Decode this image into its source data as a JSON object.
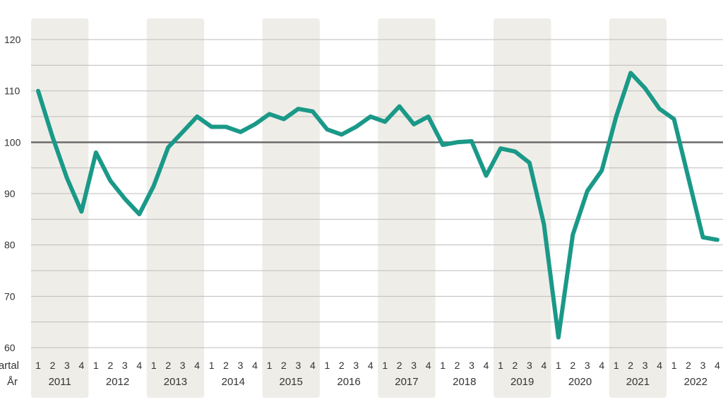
{
  "chart_data": {
    "type": "line",
    "title": "",
    "xlabel": "",
    "ylabel": "",
    "row_labels": {
      "quarter": "Kvartal",
      "year": "År"
    },
    "years": [
      "2011",
      "2012",
      "2013",
      "2014",
      "2015",
      "2016",
      "2017",
      "2018",
      "2019",
      "2020",
      "2021",
      "2022"
    ],
    "quarter_labels": [
      "1",
      "2",
      "3",
      "4"
    ],
    "y_ticks": [
      "60",
      "70",
      "80",
      "90",
      "100",
      "110",
      "120"
    ],
    "ylim": [
      60,
      120
    ],
    "reference_line": 100,
    "series": [
      {
        "values": [
          110,
          101,
          93,
          86.5,
          98,
          92.5,
          89,
          86,
          91.5,
          99,
          102,
          105,
          103,
          103,
          102,
          103.5,
          105.5,
          104.5,
          106.5,
          106,
          102.5,
          101.5,
          103,
          105,
          104,
          107,
          103.5,
          105,
          99.5,
          100,
          100.2,
          93.5,
          98.8,
          98.2,
          96,
          84,
          62,
          82,
          90.5,
          94.5,
          105,
          113.5,
          110.5,
          106.5,
          104.5,
          93,
          81.5,
          81
        ]
      }
    ],
    "line_color": "#1a9988",
    "band_color": "#efede8",
    "reference_color": "#6b6b6b",
    "grid_color": "#bdbdbd"
  }
}
